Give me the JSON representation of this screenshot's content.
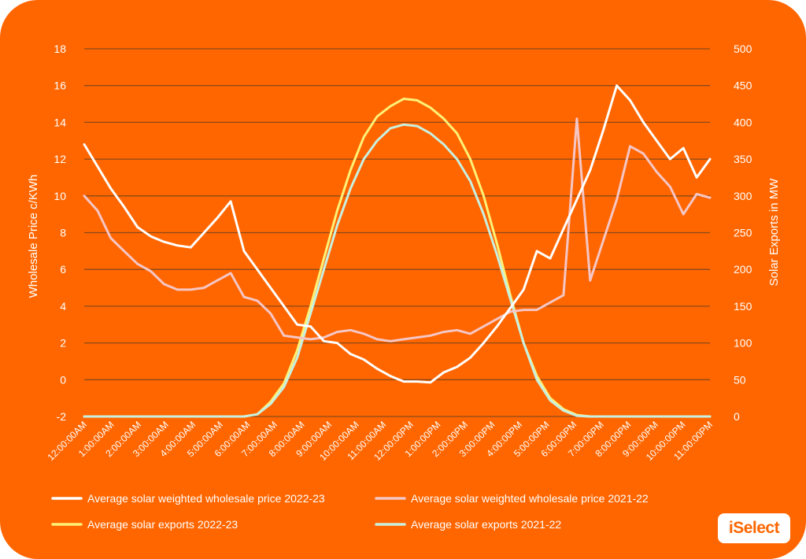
{
  "brand": {
    "logo_text": "iSelect",
    "background": "#ff6600",
    "text_color": "#ffffff",
    "grid_color": "#8a4a1a"
  },
  "chart_data": {
    "type": "line",
    "title": "",
    "ylabel_left": "Wholesale Price c/KWh",
    "ylabel_right": "Solar Exports in MW",
    "ylim_left": [
      -2,
      18
    ],
    "ylim_right": [
      0,
      500
    ],
    "y_ticks_left": [
      -2,
      0,
      2,
      4,
      6,
      8,
      10,
      12,
      14,
      16,
      18
    ],
    "y_ticks_right": [
      0,
      50,
      100,
      150,
      200,
      250,
      300,
      350,
      400,
      450,
      500
    ],
    "grid": true,
    "legend_position": "bottom",
    "x_tick_labels": [
      "12:00:00AM",
      "1:00:00AM",
      "2:00:00AM",
      "3:00:00AM",
      "4:00:00AM",
      "5:00:00AM",
      "6:00:00AM",
      "7:00:00AM",
      "8:00:00AM",
      "9:00:00AM",
      "10:00:00AM",
      "11:00:00AM",
      "12:00:00PM",
      "1:00:00PM",
      "2:00:00PM",
      "3:00:00PM",
      "4:00:00PM",
      "5:00:00PM",
      "6:00:00PM",
      "7:00:00PM",
      "8:00:00PM",
      "9:00:00PM",
      "10:00:00PM",
      "11:00:00PM"
    ],
    "series": [
      {
        "name": "Average solar weighted wholesale price 2022-23",
        "axis": "left",
        "color": "#ffffff",
        "values": [
          12.8,
          11.6,
          10.4,
          9.4,
          8.3,
          7.8,
          7.5,
          7.3,
          7.2,
          8.0,
          8.8,
          9.7,
          7.0,
          6.0,
          5.0,
          4.0,
          3.0,
          2.9,
          2.1,
          2.0,
          1.4,
          1.1,
          0.6,
          0.2,
          -0.1,
          -0.1,
          -0.15,
          0.4,
          0.7,
          1.2,
          2.0,
          2.9,
          3.9,
          4.9,
          7.0,
          6.6,
          8.2,
          9.8,
          11.4,
          13.6,
          16.0,
          15.2,
          14.0,
          13.0,
          12.0,
          12.6,
          11.0,
          12.0
        ]
      },
      {
        "name": "Average solar weighted wholesale price 2021-22",
        "axis": "left",
        "color": "#f5c6c6",
        "values": [
          10.0,
          9.2,
          7.7,
          7.0,
          6.3,
          5.9,
          5.2,
          4.9,
          4.9,
          5.0,
          5.4,
          5.8,
          4.5,
          4.3,
          3.6,
          2.4,
          2.3,
          2.2,
          2.3,
          2.6,
          2.7,
          2.5,
          2.2,
          2.1,
          2.2,
          2.3,
          2.4,
          2.6,
          2.7,
          2.5,
          2.9,
          3.3,
          3.7,
          3.8,
          3.8,
          4.2,
          4.6,
          14.2,
          5.4,
          7.6,
          9.8,
          12.7,
          12.3,
          11.3,
          10.5,
          9.0,
          10.1,
          9.9
        ]
      },
      {
        "name": "Average solar exports 2022-23",
        "axis": "right",
        "color": "#fff176",
        "values": [
          0,
          0,
          0,
          0,
          0,
          0,
          0,
          0,
          0,
          0,
          0,
          0,
          0,
          3,
          20,
          45,
          90,
          150,
          215,
          280,
          335,
          380,
          408,
          422,
          432,
          430,
          420,
          405,
          385,
          350,
          300,
          235,
          165,
          100,
          55,
          25,
          10,
          2,
          0,
          0,
          0,
          0,
          0,
          0,
          0,
          0,
          0,
          0
        ]
      },
      {
        "name": "Average solar exports 2021-22",
        "axis": "right",
        "color": "#c8f0e0",
        "values": [
          0,
          0,
          0,
          0,
          0,
          0,
          0,
          0,
          0,
          0,
          0,
          0,
          0,
          3,
          17,
          40,
          80,
          140,
          200,
          260,
          310,
          350,
          375,
          392,
          397,
          395,
          385,
          370,
          350,
          320,
          275,
          220,
          160,
          100,
          50,
          22,
          8,
          1,
          0,
          0,
          0,
          0,
          0,
          0,
          0,
          0,
          0,
          0
        ]
      }
    ]
  }
}
